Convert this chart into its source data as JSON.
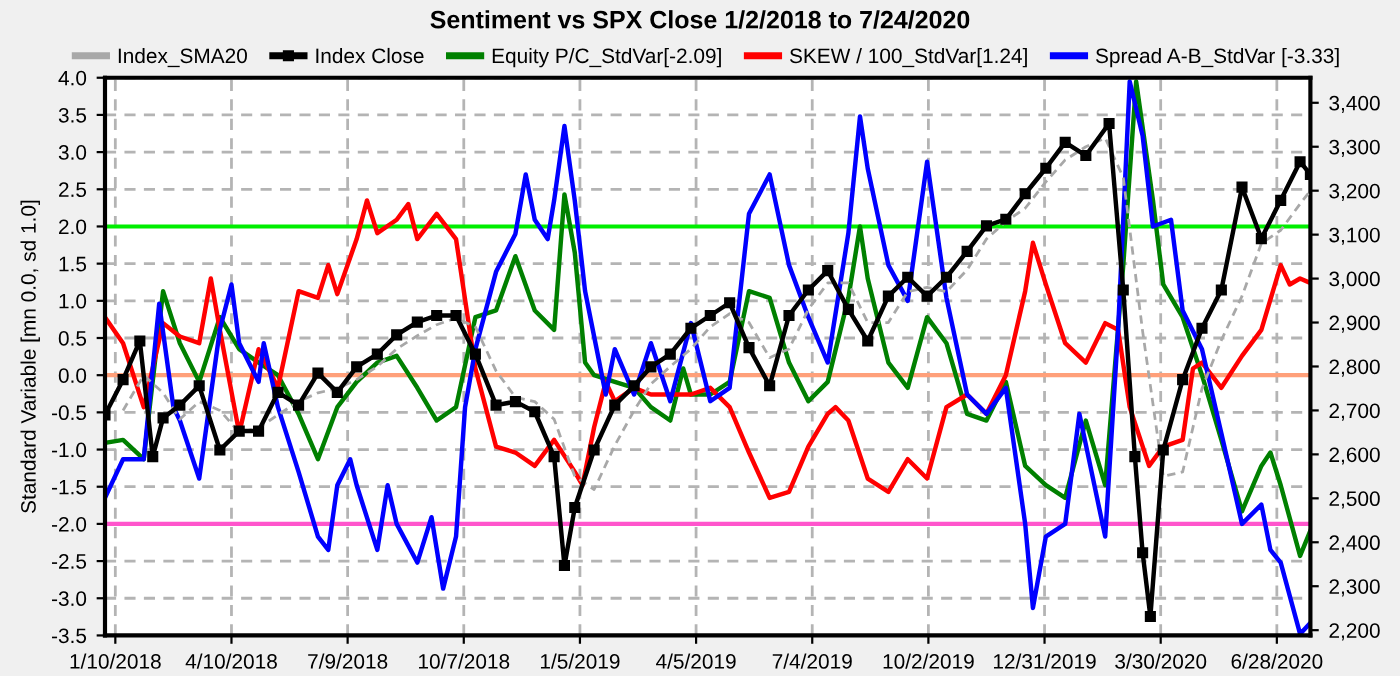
{
  "chart_data": {
    "type": "line",
    "title": "Sentiment vs SPX Close 1/2/2018 to 7/24/2020",
    "ylabel": "Standard Variable [mn 0.0, sd 1.0]",
    "xlim": [
      "2018-01-02",
      "2020-07-24"
    ],
    "xticks": [
      {
        "value": "2018-01-10",
        "label": "1/10/2018"
      },
      {
        "value": "2018-04-10",
        "label": "4/10/2018"
      },
      {
        "value": "2018-07-09",
        "label": "7/9/2018"
      },
      {
        "value": "2018-10-07",
        "label": "10/7/2018"
      },
      {
        "value": "2019-01-05",
        "label": "1/5/2019"
      },
      {
        "value": "2019-04-05",
        "label": "4/5/2019"
      },
      {
        "value": "2019-07-04",
        "label": "7/4/2019"
      },
      {
        "value": "2019-10-02",
        "label": "10/2/2019"
      },
      {
        "value": "2019-12-31",
        "label": "12/31/2019"
      },
      {
        "value": "2020-03-30",
        "label": "3/30/2020"
      },
      {
        "value": "2020-06-28",
        "label": "6/28/2020"
      }
    ],
    "ylim": [
      -3.5,
      4.0
    ],
    "yticks": [
      -3.5,
      {
        "value": -3.0,
        "label": "-3.0"
      },
      -2.5,
      {
        "value": -2.0,
        "label": "-2.0"
      },
      -1.5,
      {
        "value": -1.0,
        "label": "-1.0"
      },
      -0.5,
      {
        "value": 0.0,
        "label": "0.0"
      },
      0.5,
      {
        "value": 1.0,
        "label": "1.0"
      },
      1.5,
      {
        "value": 2.0,
        "label": "2.0"
      },
      2.5,
      {
        "value": 3.0,
        "label": "3.0"
      },
      3.5,
      {
        "value": 4.0,
        "label": "4.0"
      }
    ],
    "y2lim": [
      2188,
      3457
    ],
    "y2ticks": [
      {
        "value": 2200,
        "label": "2,200"
      },
      {
        "value": 2300,
        "label": "2,300"
      },
      {
        "value": 2400,
        "label": "2,400"
      },
      {
        "value": 2500,
        "label": "2,500"
      },
      {
        "value": 2600,
        "label": "2,600"
      },
      {
        "value": 2700,
        "label": "2,700"
      },
      {
        "value": 2800,
        "label": "2,800"
      },
      {
        "value": 2900,
        "label": "2,900"
      },
      {
        "value": 3000,
        "label": "3,000"
      },
      {
        "value": 3100,
        "label": "3,100"
      },
      {
        "value": 3200,
        "label": "3,200"
      },
      {
        "value": 3300,
        "label": "3,300"
      },
      {
        "value": 3400,
        "label": "3,400"
      }
    ],
    "grid": true,
    "legend": "top",
    "ref_lines": [
      {
        "axis": "y",
        "value": 2.0,
        "color": "#00ee00"
      },
      {
        "axis": "y",
        "value": 0.0,
        "color": "#ffa07a"
      },
      {
        "axis": "y",
        "value": -2.0,
        "color": "#ff55cc"
      }
    ],
    "series": [
      {
        "name": "Index_SMA20",
        "color": "#a8a8a8",
        "axis": "y2",
        "line_style": "dashed",
        "x": [
          "2018-01-16",
          "2018-02-01",
          "2018-02-16",
          "2018-03-01",
          "2018-03-16",
          "2018-04-01",
          "2018-04-16",
          "2018-05-01",
          "2018-05-16",
          "2018-06-01",
          "2018-06-16",
          "2018-07-01",
          "2018-07-16",
          "2018-08-01",
          "2018-08-16",
          "2018-09-01",
          "2018-09-16",
          "2018-10-01",
          "2018-10-16",
          "2018-11-01",
          "2018-11-16",
          "2018-12-01",
          "2018-12-16",
          "2019-01-01",
          "2019-01-16",
          "2019-02-01",
          "2019-02-16",
          "2019-03-01",
          "2019-03-16",
          "2019-04-01",
          "2019-04-16",
          "2019-05-01",
          "2019-05-16",
          "2019-06-01",
          "2019-06-16",
          "2019-07-01",
          "2019-07-16",
          "2019-08-01",
          "2019-08-16",
          "2019-09-01",
          "2019-09-16",
          "2019-10-01",
          "2019-10-16",
          "2019-11-01",
          "2019-11-16",
          "2019-12-01",
          "2019-12-16",
          "2020-01-01",
          "2020-01-16",
          "2020-02-01",
          "2020-02-16",
          "2020-03-01",
          "2020-03-16",
          "2020-04-01",
          "2020-04-16",
          "2020-05-01",
          "2020-05-16",
          "2020-06-01",
          "2020-06-16",
          "2020-07-01",
          "2020-07-16",
          "2020-07-24"
        ],
        "values": [
          2700,
          2780,
          2740,
          2680,
          2720,
          2700,
          2650,
          2660,
          2690,
          2720,
          2740,
          2750,
          2770,
          2800,
          2840,
          2870,
          2895,
          2910,
          2890,
          2790,
          2730,
          2720,
          2680,
          2550,
          2520,
          2620,
          2700,
          2760,
          2800,
          2840,
          2890,
          2920,
          2900,
          2820,
          2840,
          2930,
          2990,
          2990,
          2900,
          2900,
          2970,
          2980,
          2970,
          3020,
          3090,
          3130,
          3160,
          3220,
          3270,
          3300,
          3320,
          3230,
          2880,
          2550,
          2560,
          2750,
          2860,
          2960,
          3080,
          3110,
          3170,
          3200
        ]
      },
      {
        "name": "Index Close",
        "color": "#000000",
        "axis": "y2",
        "marker": "square",
        "x": [
          "2018-01-02",
          "2018-01-16",
          "2018-01-29",
          "2018-02-08",
          "2018-02-16",
          "2018-03-01",
          "2018-03-16",
          "2018-04-01",
          "2018-04-16",
          "2018-05-01",
          "2018-05-16",
          "2018-06-01",
          "2018-06-16",
          "2018-07-01",
          "2018-07-16",
          "2018-08-01",
          "2018-08-16",
          "2018-09-01",
          "2018-09-16",
          "2018-10-01",
          "2018-10-16",
          "2018-11-01",
          "2018-11-16",
          "2018-12-01",
          "2018-12-16",
          "2018-12-24",
          "2019-01-01",
          "2019-01-16",
          "2019-02-01",
          "2019-02-16",
          "2019-03-01",
          "2019-03-16",
          "2019-04-01",
          "2019-04-16",
          "2019-05-01",
          "2019-05-16",
          "2019-06-01",
          "2019-06-16",
          "2019-07-01",
          "2019-07-16",
          "2019-08-01",
          "2019-08-16",
          "2019-09-01",
          "2019-09-16",
          "2019-10-01",
          "2019-10-16",
          "2019-11-01",
          "2019-11-16",
          "2019-12-01",
          "2019-12-16",
          "2020-01-01",
          "2020-01-16",
          "2020-02-01",
          "2020-02-19",
          "2020-03-01",
          "2020-03-10",
          "2020-03-16",
          "2020-03-22",
          "2020-04-01",
          "2020-04-16",
          "2020-05-01",
          "2020-05-16",
          "2020-06-01",
          "2020-06-16",
          "2020-07-01",
          "2020-07-16",
          "2020-07-24"
        ],
        "values": [
          2690,
          2770,
          2858,
          2595,
          2683,
          2712,
          2756,
          2610,
          2653,
          2653,
          2741,
          2712,
          2785,
          2741,
          2799,
          2828,
          2872,
          2901,
          2916,
          2916,
          2828,
          2712,
          2720,
          2697,
          2595,
          2347,
          2479,
          2610,
          2712,
          2756,
          2799,
          2828,
          2887,
          2916,
          2945,
          2843,
          2756,
          2916,
          2974,
          3018,
          2930,
          2858,
          2960,
          3003,
          2960,
          3003,
          3062,
          3120,
          3135,
          3193,
          3251,
          3310,
          3280,
          3353,
          2974,
          2595,
          2376,
          2231,
          2610,
          2770,
          2887,
          2974,
          3208,
          3091,
          3178,
          3266,
          3237
        ]
      },
      {
        "name": "Equity P/C_StdVar[-2.09]",
        "color": "#008000",
        "x": [
          "2018-01-02",
          "2018-01-16",
          "2018-02-01",
          "2018-02-16",
          "2018-03-01",
          "2018-03-16",
          "2018-04-01",
          "2018-04-16",
          "2018-05-01",
          "2018-05-16",
          "2018-06-01",
          "2018-06-16",
          "2018-07-01",
          "2018-07-16",
          "2018-08-01",
          "2018-08-16",
          "2018-09-01",
          "2018-09-16",
          "2018-10-01",
          "2018-10-16",
          "2018-11-01",
          "2018-11-16",
          "2018-12-01",
          "2018-12-16",
          "2018-12-24",
          "2019-01-01",
          "2019-01-09",
          "2019-01-16",
          "2019-02-01",
          "2019-02-16",
          "2019-03-01",
          "2019-03-16",
          "2019-03-26",
          "2019-04-01",
          "2019-04-16",
          "2019-05-01",
          "2019-05-16",
          "2019-06-01",
          "2019-06-16",
          "2019-07-01",
          "2019-07-16",
          "2019-08-01",
          "2019-08-10",
          "2019-08-16",
          "2019-09-01",
          "2019-09-16",
          "2019-10-01",
          "2019-10-16",
          "2019-11-01",
          "2019-11-16",
          "2019-12-01",
          "2019-12-16",
          "2020-01-01",
          "2020-01-16",
          "2020-02-01",
          "2020-02-16",
          "2020-03-01",
          "2020-03-11",
          "2020-03-24",
          "2020-04-01",
          "2020-04-16",
          "2020-05-01",
          "2020-05-16",
          "2020-06-01",
          "2020-06-16",
          "2020-06-23",
          "2020-07-01",
          "2020-07-16",
          "2020-07-24"
        ],
        "values": [
          -0.91,
          -0.87,
          -1.13,
          1.13,
          0.43,
          -0.09,
          0.78,
          0.35,
          0.17,
          0.0,
          -0.52,
          -1.13,
          -0.43,
          -0.09,
          0.17,
          0.26,
          -0.17,
          -0.61,
          -0.43,
          0.78,
          0.87,
          1.6,
          0.87,
          0.61,
          2.43,
          1.65,
          0.17,
          0.0,
          -0.09,
          -0.17,
          -0.43,
          -0.61,
          0.09,
          -0.26,
          -0.26,
          -0.09,
          1.13,
          1.04,
          0.17,
          -0.35,
          -0.09,
          1.04,
          2.0,
          1.3,
          0.17,
          -0.17,
          0.78,
          0.43,
          -0.52,
          -0.61,
          -0.09,
          -1.22,
          -1.48,
          -1.65,
          -0.61,
          -1.48,
          1.48,
          3.95,
          2.35,
          1.22,
          0.78,
          0.0,
          -0.87,
          -1.83,
          -1.22,
          -1.04,
          -1.48,
          -2.43,
          -2.09
        ]
      },
      {
        "name": "SKEW / 100_StdVar[1.24]",
        "color": "#ff0000",
        "x": [
          "2018-01-02",
          "2018-01-16",
          "2018-02-01",
          "2018-02-16",
          "2018-03-01",
          "2018-03-16",
          "2018-03-25",
          "2018-04-01",
          "2018-04-16",
          "2018-05-01",
          "2018-05-16",
          "2018-06-01",
          "2018-06-16",
          "2018-06-24",
          "2018-07-01",
          "2018-07-16",
          "2018-07-24",
          "2018-08-01",
          "2018-08-16",
          "2018-08-25",
          "2018-09-01",
          "2018-09-16",
          "2018-10-01",
          "2018-10-16",
          "2018-11-01",
          "2018-11-16",
          "2018-12-01",
          "2018-12-16",
          "2019-01-01",
          "2019-01-07",
          "2019-01-16",
          "2019-01-25",
          "2019-02-01",
          "2019-02-16",
          "2019-03-01",
          "2019-03-16",
          "2019-04-01",
          "2019-04-16",
          "2019-05-01",
          "2019-05-16",
          "2019-06-01",
          "2019-06-16",
          "2019-07-01",
          "2019-07-16",
          "2019-07-22",
          "2019-08-01",
          "2019-08-16",
          "2019-09-01",
          "2019-09-16",
          "2019-10-01",
          "2019-10-16",
          "2019-11-01",
          "2019-11-16",
          "2019-12-01",
          "2019-12-16",
          "2019-12-22",
          "2020-01-01",
          "2020-01-16",
          "2020-02-01",
          "2020-02-16",
          "2020-02-26",
          "2020-03-06",
          "2020-03-21",
          "2020-04-01",
          "2020-04-16",
          "2020-04-24",
          "2020-05-01",
          "2020-05-16",
          "2020-06-01",
          "2020-06-16",
          "2020-07-01",
          "2020-07-08",
          "2020-07-16",
          "2020-07-24"
        ],
        "values": [
          0.78,
          0.43,
          -0.43,
          0.7,
          0.52,
          0.43,
          1.3,
          0.61,
          -0.78,
          0.35,
          -0.17,
          1.13,
          1.04,
          1.48,
          1.09,
          1.83,
          2.35,
          1.91,
          2.09,
          2.3,
          1.83,
          2.17,
          1.83,
          0.09,
          -0.96,
          -1.04,
          -1.22,
          -0.87,
          -1.3,
          -1.48,
          -0.7,
          -0.09,
          -0.35,
          -0.17,
          -0.26,
          -0.26,
          -0.26,
          -0.17,
          -0.43,
          -1.04,
          -1.65,
          -1.57,
          -0.96,
          -0.52,
          -0.43,
          -0.61,
          -1.39,
          -1.57,
          -1.13,
          -1.39,
          -0.43,
          -0.26,
          -0.52,
          0.0,
          1.13,
          1.78,
          1.22,
          0.43,
          0.17,
          0.7,
          0.61,
          -0.43,
          -1.22,
          -0.96,
          -0.87,
          0.09,
          0.17,
          -0.17,
          0.26,
          0.61,
          1.48,
          1.22,
          1.3,
          1.24
        ]
      },
      {
        "name": "Spread A-B_StdVar [-3.33]",
        "color": "#0000ff",
        "x": [
          "2018-01-02",
          "2018-01-16",
          "2018-02-01",
          "2018-02-13",
          "2018-02-24",
          "2018-03-01",
          "2018-03-16",
          "2018-04-01",
          "2018-04-10",
          "2018-04-16",
          "2018-05-01",
          "2018-05-05",
          "2018-05-16",
          "2018-06-01",
          "2018-06-16",
          "2018-06-24",
          "2018-07-01",
          "2018-07-11",
          "2018-07-16",
          "2018-08-01",
          "2018-08-09",
          "2018-08-16",
          "2018-09-01",
          "2018-09-12",
          "2018-09-21",
          "2018-10-01",
          "2018-10-08",
          "2018-10-16",
          "2018-11-01",
          "2018-11-16",
          "2018-11-24",
          "2018-12-01",
          "2018-12-11",
          "2018-12-16",
          "2018-12-24",
          "2019-01-01",
          "2019-01-09",
          "2019-01-16",
          "2019-01-25",
          "2019-02-01",
          "2019-02-16",
          "2019-03-01",
          "2019-03-16",
          "2019-04-01",
          "2019-04-16",
          "2019-05-01",
          "2019-05-16",
          "2019-06-01",
          "2019-06-16",
          "2019-07-01",
          "2019-07-16",
          "2019-08-01",
          "2019-08-10",
          "2019-08-16",
          "2019-09-01",
          "2019-09-16",
          "2019-10-01",
          "2019-10-16",
          "2019-11-01",
          "2019-11-16",
          "2019-12-01",
          "2019-12-16",
          "2019-12-22",
          "2020-01-01",
          "2020-01-16",
          "2020-01-27",
          "2020-02-16",
          "2020-02-26",
          "2020-03-06",
          "2020-03-16",
          "2020-03-24",
          "2020-04-07",
          "2020-04-16",
          "2020-05-01",
          "2020-05-16",
          "2020-06-01",
          "2020-06-16",
          "2020-06-23",
          "2020-07-01",
          "2020-07-16",
          "2020-07-24"
        ],
        "values": [
          -1.65,
          -1.13,
          -1.13,
          0.96,
          -0.43,
          -0.61,
          -1.39,
          0.61,
          1.22,
          0.43,
          -0.09,
          0.43,
          -0.43,
          -1.3,
          -2.17,
          -2.35,
          -1.48,
          -1.13,
          -1.48,
          -2.35,
          -1.48,
          -2.0,
          -2.52,
          -1.91,
          -2.87,
          -2.17,
          -0.43,
          0.35,
          1.39,
          1.9,
          2.7,
          2.09,
          1.83,
          2.35,
          3.35,
          2.35,
          1.13,
          0.52,
          -0.26,
          0.35,
          -0.26,
          0.43,
          -0.35,
          0.7,
          -0.35,
          -0.17,
          2.17,
          2.7,
          1.48,
          0.78,
          0.17,
          1.91,
          3.48,
          2.78,
          1.48,
          1.0,
          2.87,
          1.04,
          -0.26,
          -0.52,
          -0.17,
          -2.0,
          -3.13,
          -2.17,
          -2.0,
          -0.52,
          -2.17,
          0.61,
          3.95,
          3.22,
          2.0,
          2.09,
          0.87,
          0.35,
          -0.78,
          -2.0,
          -1.74,
          -2.35,
          -2.52,
          -3.48,
          -3.33
        ]
      }
    ]
  }
}
